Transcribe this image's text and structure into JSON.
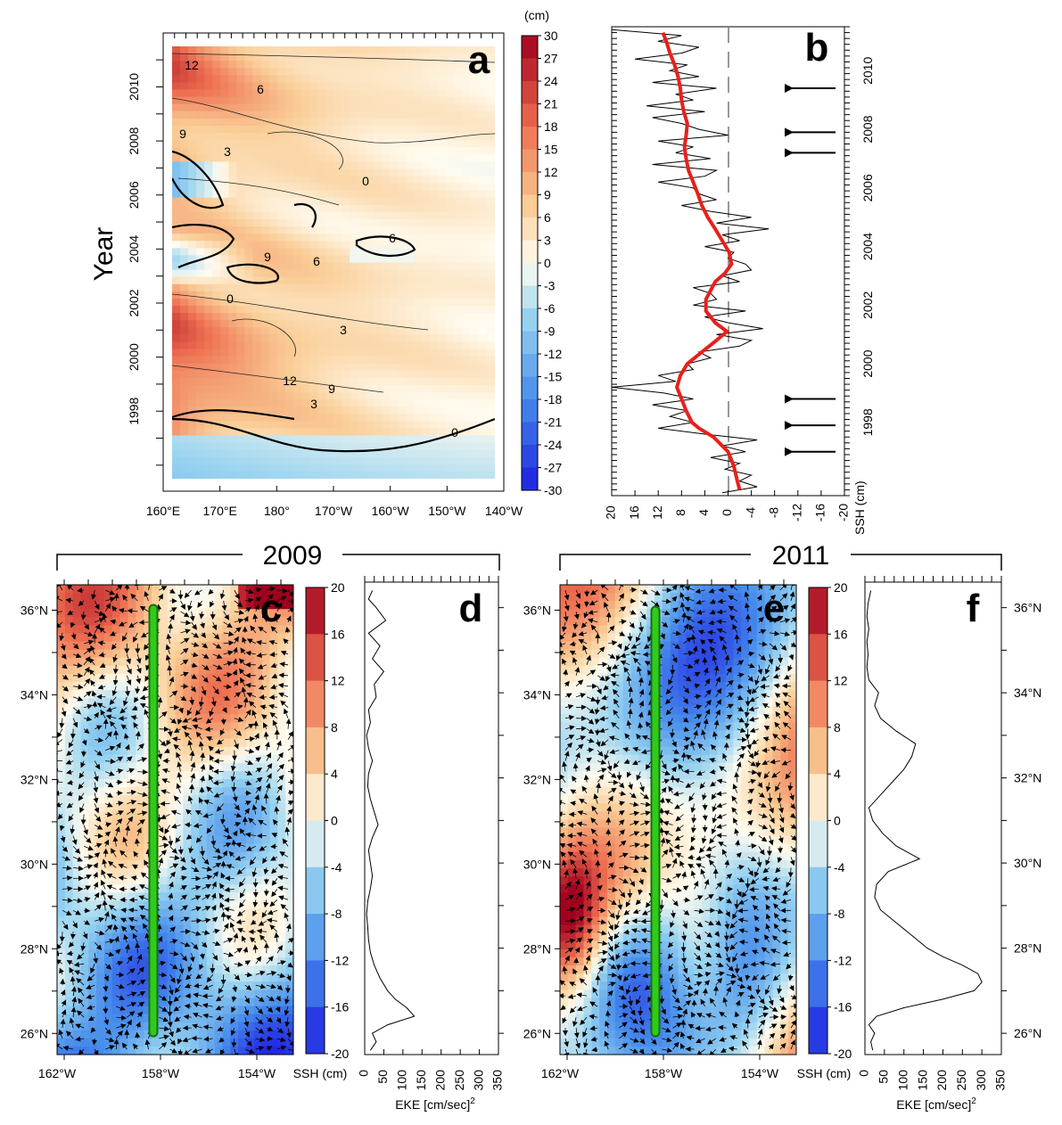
{
  "chart_data": [
    {
      "panel": "a",
      "type": "heatmap",
      "label": "a",
      "ylabel": "Year",
      "colorbar_unit": "(cm)",
      "colorbar_ticks": [
        "30",
        "27",
        "24",
        "21",
        "18",
        "15",
        "12",
        "9",
        "6",
        "3",
        "0",
        "-3",
        "-6",
        "-9",
        "-12",
        "-15",
        "-18",
        "-21",
        "-24",
        "-27",
        "-30"
      ],
      "x_ticks": [
        "160°E",
        "170°E",
        "180°",
        "170°W",
        "160°W",
        "150°W",
        "140°W"
      ],
      "y_ticks": [
        "1998",
        "2000",
        "2002",
        "2004",
        "2006",
        "2008",
        "2010"
      ],
      "ylim": [
        1996.5,
        2012.5
      ],
      "zlim": [
        -30,
        30
      ],
      "contour_labels": [
        "12",
        "6",
        "9",
        "3",
        "0",
        "6",
        "9",
        "6",
        "3",
        "0",
        "12",
        "9",
        "3",
        "0"
      ]
    },
    {
      "panel": "b",
      "type": "line",
      "label": "b",
      "xlabel": "SSH (cm)",
      "x_ticks": [
        "20",
        "16",
        "12",
        "8",
        "4",
        "0",
        "-4",
        "-8",
        "-12",
        "-16",
        "-20"
      ],
      "y_ticks": [
        "1998",
        "2000",
        "2002",
        "2004",
        "2006",
        "2008",
        "2010"
      ],
      "xlim": [
        20,
        -20
      ],
      "ylim": [
        1996.5,
        2012.5
      ],
      "smooth": {
        "color": "#e8201b",
        "years": [
          1996.7,
          1997.0,
          1997.5,
          1998.0,
          1998.5,
          1998.8,
          1999.0,
          1999.4,
          1999.8,
          2000.2,
          2000.6,
          2001.0,
          2001.4,
          2001.8,
          2002.1,
          2002.4,
          2002.8,
          2003.2,
          2003.5,
          2003.8,
          2004.1,
          2004.4,
          2004.8,
          2005.2,
          2005.6,
          2006.0,
          2006.4,
          2006.8,
          2007.2,
          2007.6,
          2008.0,
          2008.4,
          2008.8,
          2009.2,
          2009.6,
          2010.0,
          2010.4,
          2010.8,
          2011.2,
          2011.6,
          2012.0,
          2012.3
        ],
        "ssh": [
          -2.0,
          -1.6,
          -1.0,
          0.0,
          2.5,
          5.0,
          6.2,
          7.2,
          8.0,
          8.8,
          8.2,
          7.0,
          4.5,
          2.0,
          0.2,
          2.2,
          3.8,
          3.8,
          3.0,
          2.2,
          0.5,
          -0.6,
          -0.2,
          1.0,
          2.2,
          3.5,
          4.5,
          5.2,
          6.0,
          6.8,
          7.2,
          7.5,
          7.2,
          7.0,
          7.6,
          8.0,
          8.2,
          8.6,
          9.2,
          10.0,
          10.6,
          11.2
        ]
      },
      "raw": {
        "color": "#000000",
        "years": [
          1996.6,
          1996.8,
          1997.0,
          1997.2,
          1997.4,
          1997.6,
          1997.8,
          1998.0,
          1998.2,
          1998.4,
          1998.6,
          1998.8,
          1999.0,
          1999.2,
          1999.4,
          1999.6,
          1999.8,
          2000.0,
          2000.2,
          2000.4,
          2000.6,
          2000.8,
          2001.0,
          2001.2,
          2001.4,
          2001.6,
          2001.8,
          2002.0,
          2002.2,
          2002.4,
          2002.6,
          2002.8,
          2003.0,
          2003.2,
          2003.4,
          2003.6,
          2003.8,
          2004.0,
          2004.2,
          2004.4,
          2004.6,
          2004.8,
          2005.0,
          2005.2,
          2005.4,
          2005.6,
          2005.8,
          2006.0,
          2006.2,
          2006.4,
          2006.6,
          2006.8,
          2007.0,
          2007.2,
          2007.4,
          2007.6,
          2007.8,
          2008.0,
          2008.2,
          2008.4,
          2008.6,
          2008.8,
          2009.0,
          2009.2,
          2009.4,
          2009.6,
          2009.8,
          2010.0,
          2010.2,
          2010.4,
          2010.6,
          2010.8,
          2011.0,
          2011.2,
          2011.4,
          2011.6,
          2011.8,
          2012.0,
          2012.2,
          2012.4
        ],
        "ssh": [
          1.0,
          -5.0,
          -2.0,
          -4.0,
          0.5,
          -2.0,
          3.0,
          -3.0,
          1.0,
          -5.0,
          4.0,
          12.0,
          6.0,
          10.0,
          7.0,
          13.0,
          6.0,
          11.0,
          20.0,
          9.0,
          12.0,
          6.0,
          7.0,
          3.0,
          5.0,
          -2.0,
          -4.0,
          2.0,
          -6.0,
          0.0,
          4.0,
          -3.0,
          6.0,
          2.0,
          3.0,
          6.0,
          -2.0,
          1.0,
          -4.0,
          -3.0,
          0.0,
          -1.0,
          4.0,
          -2.0,
          1.0,
          -7.0,
          2.0,
          -4.0,
          3.0,
          8.0,
          2.0,
          5.0,
          6.0,
          12.0,
          4.0,
          2.0,
          13.0,
          3.0,
          9.0,
          6.0,
          12.0,
          0.0,
          5.0,
          8.0,
          13.0,
          4.0,
          14.0,
          6.0,
          9.0,
          2.0,
          13.0,
          5.0,
          10.0,
          7.0,
          16.0,
          8.0,
          5.0,
          12.0,
          8.0,
          20.0
        ]
      },
      "arrow_years": [
        2010.4,
        2008.9,
        2008.2,
        1999.8,
        1998.9,
        1998.0
      ]
    },
    {
      "panel": "c",
      "type": "heatmap",
      "label": "c",
      "title": "2009",
      "xlabel": "SSH (cm)",
      "x_ticks": [
        "162°W",
        "158°W",
        "154°W"
      ],
      "y_ticks": [
        "26°N",
        "28°N",
        "30°N",
        "32°N",
        "34°N",
        "36°N"
      ],
      "colorbar_ticks": [
        "20",
        "16",
        "12",
        "8",
        "4",
        "0",
        "-4",
        "-8",
        "-12",
        "-16",
        "-20"
      ],
      "zlim": [
        -20,
        20
      ]
    },
    {
      "panel": "d",
      "type": "line",
      "label": "d",
      "xlabel": "EKE [cm/sec]",
      "xlabel_sup": "2",
      "x_ticks": [
        "0",
        "50",
        "100",
        "150",
        "200",
        "250",
        "300",
        "350"
      ],
      "xlim": [
        0,
        350
      ],
      "ylim": [
        25.5,
        36.6
      ],
      "lat": [
        25.6,
        25.8,
        26.0,
        26.2,
        26.4,
        26.6,
        26.8,
        27.0,
        27.3,
        27.6,
        27.9,
        28.2,
        28.5,
        28.8,
        29.1,
        29.4,
        29.7,
        30.0,
        30.3,
        30.6,
        30.9,
        31.2,
        31.5,
        31.8,
        32.1,
        32.4,
        32.7,
        33.0,
        33.3,
        33.6,
        33.9,
        34.2,
        34.5,
        34.8,
        35.1,
        35.4,
        35.7,
        36.0,
        36.2,
        36.4
      ],
      "eke": [
        15,
        30,
        20,
        60,
        130,
        110,
        80,
        60,
        40,
        25,
        15,
        10,
        8,
        5,
        8,
        15,
        20,
        15,
        10,
        20,
        35,
        25,
        15,
        8,
        10,
        20,
        10,
        5,
        15,
        10,
        30,
        25,
        50,
        20,
        40,
        10,
        55,
        30,
        10,
        20
      ]
    },
    {
      "panel": "e",
      "type": "heatmap",
      "label": "e",
      "title": "2011",
      "xlabel": "SSH (cm)",
      "x_ticks": [
        "162°W",
        "158°W",
        "154°W"
      ],
      "y_ticks": [
        "26°N",
        "28°N",
        "30°N",
        "32°N",
        "34°N",
        "36°N"
      ],
      "colorbar_ticks": [
        "20",
        "16",
        "12",
        "8",
        "4",
        "0",
        "-4",
        "-8",
        "-12",
        "-16",
        "-20"
      ],
      "zlim": [
        -20,
        20
      ]
    },
    {
      "panel": "f",
      "type": "line",
      "label": "f",
      "xlabel": "EKE [cm/sec]",
      "xlabel_sup": "2",
      "x_ticks": [
        "0",
        "50",
        "100",
        "150",
        "200",
        "250",
        "300",
        "350"
      ],
      "xlim": [
        0,
        350
      ],
      "ylim": [
        25.5,
        36.6
      ],
      "lat": [
        25.6,
        25.8,
        26.0,
        26.2,
        26.4,
        26.6,
        26.8,
        27.0,
        27.2,
        27.4,
        27.6,
        27.8,
        28.0,
        28.3,
        28.6,
        28.9,
        29.2,
        29.5,
        29.8,
        30.1,
        30.4,
        30.7,
        31.0,
        31.3,
        31.6,
        31.9,
        32.2,
        32.5,
        32.8,
        33.1,
        33.4,
        33.7,
        34.0,
        34.3,
        34.6,
        34.9,
        35.2,
        35.5,
        35.8,
        36.1,
        36.4
      ],
      "eke": [
        20,
        15,
        25,
        10,
        30,
        100,
        200,
        280,
        300,
        290,
        250,
        200,
        160,
        120,
        80,
        40,
        25,
        30,
        60,
        140,
        80,
        45,
        20,
        10,
        40,
        70,
        100,
        120,
        130,
        80,
        40,
        25,
        35,
        10,
        5,
        8,
        5,
        10,
        5,
        8,
        15
      ]
    }
  ]
}
